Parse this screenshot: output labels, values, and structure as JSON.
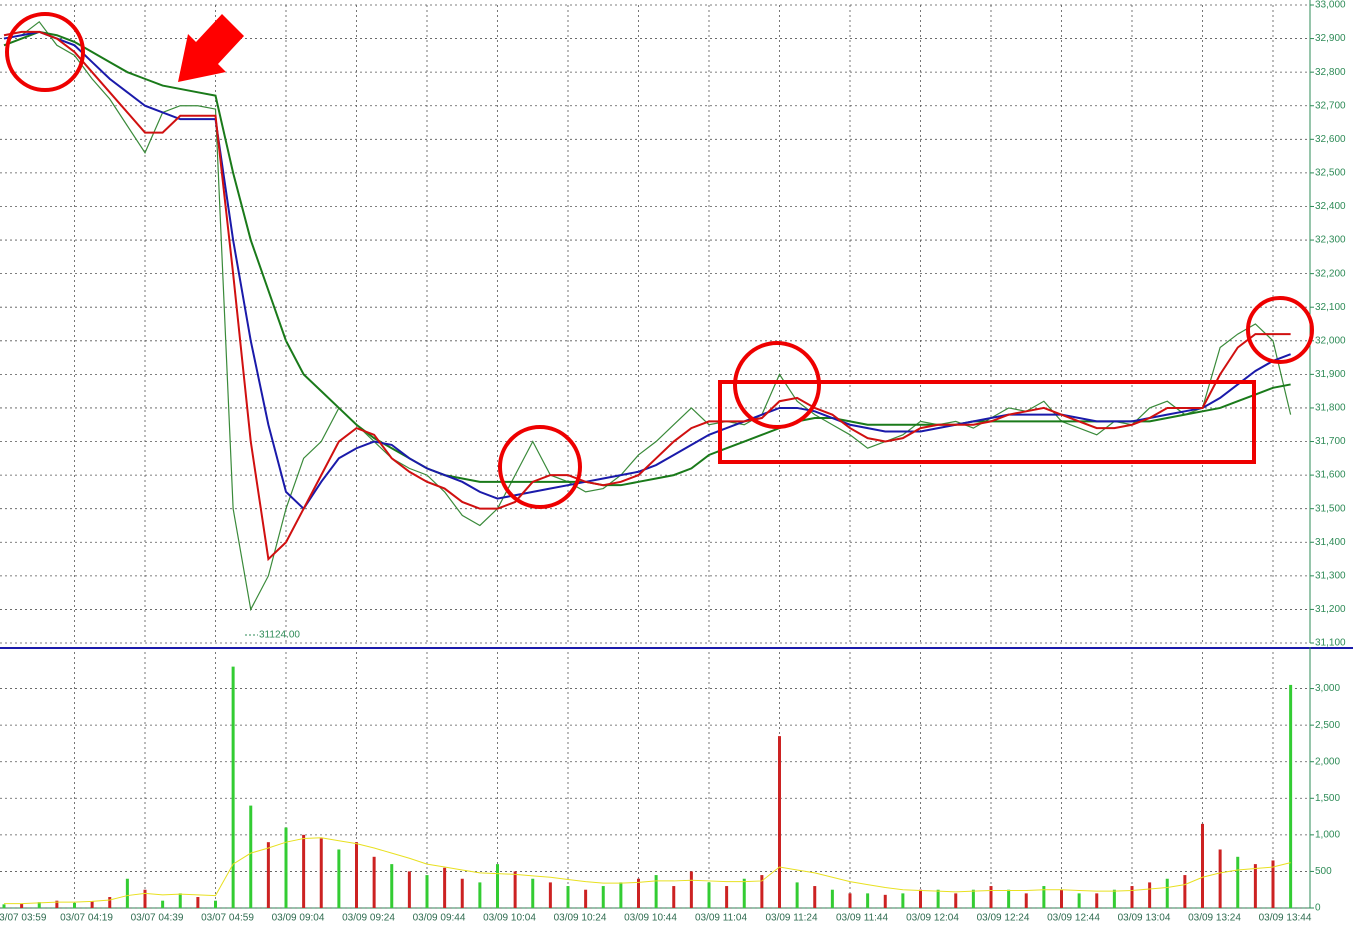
{
  "chart_data": [
    {
      "type": "line",
      "ylim": [
        31100,
        33000
      ],
      "yticks": [
        {
          "value": 31100,
          "label": "31,100"
        },
        {
          "value": 31200,
          "label": "31,200"
        },
        {
          "value": 31300,
          "label": "31,300"
        },
        {
          "value": 31400,
          "label": "31,400"
        },
        {
          "value": 31500,
          "label": "31,500"
        },
        {
          "value": 31600,
          "label": "31,600"
        },
        {
          "value": 31700,
          "label": "31,700"
        },
        {
          "value": 31800,
          "label": "31,800"
        },
        {
          "value": 31900,
          "label": "31,900"
        },
        {
          "value": 32000,
          "label": "32,000"
        },
        {
          "value": 32100,
          "label": "32,100"
        },
        {
          "value": 32200,
          "label": "32,200"
        },
        {
          "value": 32300,
          "label": "32,300"
        },
        {
          "value": 32400,
          "label": "32,400"
        },
        {
          "value": 32500,
          "label": "32,500"
        },
        {
          "value": 32600,
          "label": "32,600"
        },
        {
          "value": 32700,
          "label": "32,700"
        },
        {
          "value": 32800,
          "label": "32,800"
        },
        {
          "value": 32900,
          "label": "32,900"
        },
        {
          "value": 33000,
          "label": "33,000"
        }
      ],
      "grid": true,
      "annotation": "31124.00",
      "annotation_value": 31124,
      "series": [
        {
          "color": "#3a8a3a",
          "values": [
            32900,
            32910,
            32950,
            32880,
            32850,
            32780,
            32720,
            32640,
            32560,
            32680,
            32700,
            32700,
            32690,
            31500,
            31200,
            31300,
            31500,
            31650,
            31700,
            31800,
            31750,
            31700,
            31650,
            31620,
            31600,
            31550,
            31480,
            31450,
            31500,
            31600,
            31700,
            31600,
            31580,
            31550,
            31560,
            31600,
            31660,
            31700,
            31750,
            31800,
            31750,
            31760,
            31750,
            31780,
            31900,
            31820,
            31780,
            31750,
            31720,
            31680,
            31700,
            31720,
            31760,
            31750,
            31760,
            31740,
            31770,
            31800,
            31790,
            31820,
            31760,
            31740,
            31720,
            31760,
            31750,
            31800,
            31820,
            31780,
            31800,
            31980,
            32020,
            32050,
            32000,
            31780
          ]
        },
        {
          "color": "#1a7a1a",
          "values": [
            32880,
            32900,
            32920,
            32910,
            32890,
            32860,
            32830,
            32800,
            32780,
            32760,
            32750,
            32740,
            32730,
            32500,
            32300,
            32150,
            32000,
            31900,
            31850,
            31800,
            31750,
            31710,
            31680,
            31650,
            31620,
            31600,
            31590,
            31580,
            31580,
            31580,
            31580,
            31580,
            31580,
            31580,
            31570,
            31570,
            31580,
            31590,
            31600,
            31620,
            31660,
            31680,
            31700,
            31720,
            31740,
            31760,
            31770,
            31770,
            31760,
            31750,
            31750,
            31750,
            31750,
            31750,
            31750,
            31760,
            31760,
            31760,
            31760,
            31760,
            31760,
            31760,
            31760,
            31760,
            31760,
            31760,
            31770,
            31780,
            31790,
            31800,
            31820,
            31840,
            31860,
            31870
          ]
        },
        {
          "color": "#1a1aaa",
          "values": [
            32900,
            32910,
            32920,
            32900,
            32880,
            32830,
            32780,
            32740,
            32700,
            32680,
            32660,
            32660,
            32660,
            32300,
            32000,
            31750,
            31550,
            31500,
            31580,
            31650,
            31680,
            31700,
            31690,
            31650,
            31620,
            31600,
            31580,
            31550,
            31530,
            31540,
            31550,
            31560,
            31570,
            31580,
            31590,
            31600,
            31610,
            31630,
            31660,
            31690,
            31720,
            31740,
            31760,
            31780,
            31800,
            31800,
            31790,
            31770,
            31750,
            31740,
            31730,
            31730,
            31730,
            31740,
            31750,
            31760,
            31770,
            31780,
            31780,
            31780,
            31780,
            31770,
            31760,
            31760,
            31760,
            31770,
            31780,
            31790,
            31800,
            31830,
            31870,
            31910,
            31940,
            31960
          ]
        },
        {
          "color": "#d01010",
          "values": [
            32910,
            32920,
            32920,
            32900,
            32860,
            32800,
            32740,
            32680,
            32620,
            32620,
            32670,
            32670,
            32670,
            32200,
            31700,
            31350,
            31400,
            31500,
            31600,
            31700,
            31740,
            31720,
            31650,
            31610,
            31580,
            31560,
            31520,
            31500,
            31500,
            31520,
            31580,
            31600,
            31600,
            31580,
            31570,
            31580,
            31600,
            31650,
            31700,
            31740,
            31760,
            31760,
            31760,
            31770,
            31820,
            31830,
            31800,
            31780,
            31740,
            31710,
            31700,
            31710,
            31740,
            31750,
            31750,
            31750,
            31760,
            31780,
            31790,
            31800,
            31780,
            31760,
            31740,
            31740,
            31750,
            31770,
            31800,
            31800,
            31800,
            31900,
            31980,
            32020,
            32020,
            32020
          ]
        }
      ]
    },
    {
      "type": "bar",
      "ylim": [
        0,
        3500
      ],
      "yticks": [
        0,
        500,
        {
          "value": 1000,
          "label": "1,000"
        },
        {
          "value": 1500,
          "label": "1,500"
        },
        {
          "value": 2000,
          "label": "2,000"
        },
        {
          "value": 2500,
          "label": "2,500"
        },
        {
          "value": 3000,
          "label": "3,000"
        }
      ],
      "grid": true,
      "categories": [
        "03/07 03:59",
        null,
        null,
        null,
        "03/07 04:19",
        null,
        null,
        null,
        "03/07 04:39",
        null,
        null,
        null,
        "03/07 04:59",
        null,
        null,
        null,
        "03/09 09:04",
        null,
        null,
        null,
        "03/09 09:24",
        null,
        null,
        null,
        "03/09 09:44",
        null,
        null,
        null,
        "03/09 10:04",
        null,
        null,
        null,
        "03/09 10:24",
        null,
        null,
        null,
        "03/09 10:44",
        null,
        null,
        null,
        "03/09 11:04",
        null,
        null,
        null,
        "03/09 11:24",
        null,
        null,
        null,
        "03/09 11:44",
        null,
        null,
        null,
        "03/09 12:04",
        null,
        null,
        null,
        "03/09 12:24",
        null,
        null,
        null,
        "03/09 12:44",
        null,
        null,
        null,
        "03/09 13:04",
        null,
        null,
        null,
        "03/09 13:24",
        null,
        null,
        null,
        "03/09 13:44",
        null
      ],
      "values": [
        50,
        60,
        80,
        100,
        70,
        90,
        150,
        400,
        250,
        100,
        200,
        150,
        100,
        3300,
        1400,
        900,
        1100,
        1000,
        950,
        800,
        900,
        700,
        600,
        500,
        450,
        550,
        400,
        350,
        600,
        500,
        400,
        350,
        300,
        250,
        300,
        350,
        400,
        450,
        300,
        500,
        350,
        300,
        400,
        450,
        2350,
        350,
        300,
        250,
        200,
        200,
        180,
        200,
        250,
        250,
        200,
        250,
        300,
        250,
        200,
        300,
        250,
        200,
        200,
        250,
        300,
        350,
        400,
        450,
        1150,
        800,
        700,
        600,
        650,
        3050
      ],
      "colors": [
        "#3c3",
        "#c22",
        "#3c3",
        "#c22",
        "#3c3",
        "#c22",
        "#c22",
        "#3c3",
        "#c22",
        "#3c3",
        "#3c3",
        "#c22",
        "#3c3",
        "#3c3",
        "#3c3",
        "#c22",
        "#3c3",
        "#c22",
        "#c22",
        "#3c3",
        "#c22",
        "#c22",
        "#3c3",
        "#c22",
        "#3c3",
        "#c22",
        "#c22",
        "#3c3",
        "#3c3",
        "#c22",
        "#3c3",
        "#c22",
        "#3c3",
        "#c22",
        "#3c3",
        "#3c3",
        "#c22",
        "#3c3",
        "#c22",
        "#c22",
        "#3c3",
        "#c22",
        "#3c3",
        "#c22",
        "#c22",
        "#3c3",
        "#c22",
        "#3c3",
        "#c22",
        "#3c3",
        "#c22",
        "#3c3",
        "#c22",
        "#3c3",
        "#c22",
        "#3c3",
        "#c22",
        "#3c3",
        "#c22",
        "#3c3",
        "#c22",
        "#3c3",
        "#c22",
        "#3c3",
        "#c22",
        "#c22",
        "#3c3",
        "#c22",
        "#c22",
        "#c22",
        "#3c3",
        "#c22",
        "#c22",
        "#3c3"
      ],
      "ma_color": "#e8e020",
      "ma_values": [
        60,
        60,
        70,
        80,
        80,
        90,
        110,
        170,
        200,
        180,
        190,
        180,
        170,
        600,
        750,
        820,
        900,
        950,
        960,
        920,
        880,
        820,
        750,
        680,
        600,
        560,
        520,
        480,
        470,
        460,
        440,
        420,
        390,
        360,
        340,
        340,
        350,
        370,
        370,
        380,
        370,
        360,
        360,
        370,
        560,
        520,
        480,
        420,
        360,
        320,
        280,
        250,
        240,
        230,
        220,
        230,
        240,
        240,
        240,
        250,
        250,
        240,
        230,
        230,
        240,
        260,
        280,
        320,
        420,
        480,
        520,
        540,
        560,
        620
      ]
    }
  ]
}
